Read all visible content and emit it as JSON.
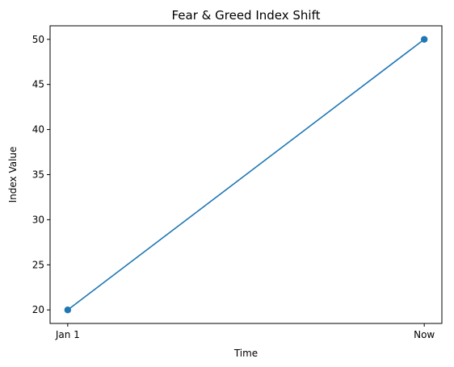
{
  "chart_data": {
    "type": "line",
    "title": "Fear & Greed Index Shift",
    "xlabel": "Time",
    "ylabel": "Index Value",
    "categories": [
      "Jan 1",
      "Now"
    ],
    "series": [
      {
        "values": [
          20,
          50
        ],
        "color": "#1f77b4",
        "marker": "circle"
      }
    ],
    "ylim": [
      18.5,
      51.5
    ],
    "yticks": [
      20,
      25,
      30,
      35,
      40,
      45,
      50
    ],
    "grid": false
  }
}
